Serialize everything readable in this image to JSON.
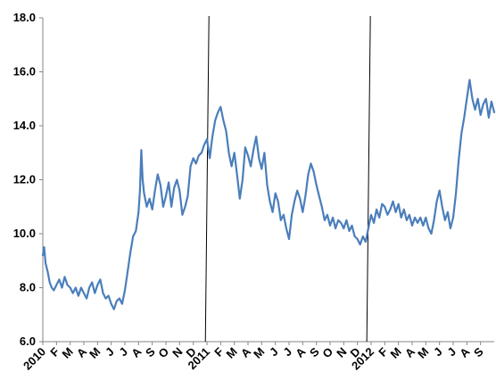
{
  "chart_data": {
    "type": "line",
    "title": "",
    "xlabel": "",
    "ylabel": "",
    "ylim": [
      6.0,
      18.0
    ],
    "yticks": [
      "6.0",
      "8.0",
      "10.0",
      "12.0",
      "14.0",
      "16.0",
      "18.0"
    ],
    "grid": false,
    "legend": "none",
    "x_range": [
      0,
      33
    ],
    "x_ticks": [
      {
        "label": "2010",
        "x": 0
      },
      {
        "label": "F",
        "x": 1
      },
      {
        "label": "M",
        "x": 2
      },
      {
        "label": "A",
        "x": 3
      },
      {
        "label": "M",
        "x": 4
      },
      {
        "label": "J",
        "x": 5
      },
      {
        "label": "J",
        "x": 6
      },
      {
        "label": "A",
        "x": 7
      },
      {
        "label": "S",
        "x": 8
      },
      {
        "label": "O",
        "x": 9
      },
      {
        "label": "N",
        "x": 10
      },
      {
        "label": "D",
        "x": 11
      },
      {
        "label": "2011",
        "x": 12
      },
      {
        "label": "F",
        "x": 13
      },
      {
        "label": "M",
        "x": 14
      },
      {
        "label": "A",
        "x": 15
      },
      {
        "label": "M",
        "x": 16
      },
      {
        "label": "J",
        "x": 17
      },
      {
        "label": "J",
        "x": 18
      },
      {
        "label": "A",
        "x": 19
      },
      {
        "label": "S",
        "x": 20
      },
      {
        "label": "O",
        "x": 21
      },
      {
        "label": "N",
        "x": 22
      },
      {
        "label": "D",
        "x": 23
      },
      {
        "label": "2012",
        "x": 24
      },
      {
        "label": "F",
        "x": 25
      },
      {
        "label": "M",
        "x": 26
      },
      {
        "label": "A",
        "x": 27
      },
      {
        "label": "M",
        "x": 28
      },
      {
        "label": "J",
        "x": 29
      },
      {
        "label": "J",
        "x": 30
      },
      {
        "label": "A",
        "x": 31
      },
      {
        "label": "S",
        "x": 32
      }
    ],
    "vertical_lines": [
      11.95,
      23.75
    ],
    "series": [
      {
        "color": "#4A7EBB",
        "points": [
          [
            0.0,
            9.2
          ],
          [
            0.1,
            9.5
          ],
          [
            0.2,
            8.9
          ],
          [
            0.35,
            8.6
          ],
          [
            0.5,
            8.2
          ],
          [
            0.65,
            8.0
          ],
          [
            0.8,
            7.9
          ],
          [
            1.0,
            8.1
          ],
          [
            1.2,
            8.3
          ],
          [
            1.4,
            8.0
          ],
          [
            1.6,
            8.4
          ],
          [
            1.8,
            8.1
          ],
          [
            2.0,
            8.0
          ],
          [
            2.2,
            7.8
          ],
          [
            2.4,
            8.0
          ],
          [
            2.6,
            7.7
          ],
          [
            2.8,
            8.0
          ],
          [
            3.0,
            7.8
          ],
          [
            3.2,
            7.6
          ],
          [
            3.4,
            8.0
          ],
          [
            3.6,
            8.2
          ],
          [
            3.8,
            7.8
          ],
          [
            4.0,
            8.1
          ],
          [
            4.2,
            8.3
          ],
          [
            4.4,
            7.8
          ],
          [
            4.6,
            7.6
          ],
          [
            4.8,
            7.7
          ],
          [
            5.0,
            7.4
          ],
          [
            5.2,
            7.2
          ],
          [
            5.4,
            7.5
          ],
          [
            5.6,
            7.6
          ],
          [
            5.8,
            7.4
          ],
          [
            6.0,
            7.9
          ],
          [
            6.2,
            8.6
          ],
          [
            6.4,
            9.3
          ],
          [
            6.6,
            9.9
          ],
          [
            6.8,
            10.1
          ],
          [
            7.0,
            10.8
          ],
          [
            7.1,
            11.6
          ],
          [
            7.2,
            13.1
          ],
          [
            7.3,
            12.0
          ],
          [
            7.4,
            11.5
          ],
          [
            7.6,
            11.0
          ],
          [
            7.8,
            11.3
          ],
          [
            8.0,
            10.9
          ],
          [
            8.2,
            11.6
          ],
          [
            8.4,
            12.2
          ],
          [
            8.6,
            11.8
          ],
          [
            8.8,
            11.0
          ],
          [
            9.0,
            11.4
          ],
          [
            9.2,
            11.9
          ],
          [
            9.4,
            11.0
          ],
          [
            9.6,
            11.7
          ],
          [
            9.8,
            12.0
          ],
          [
            10.0,
            11.6
          ],
          [
            10.2,
            10.7
          ],
          [
            10.4,
            11.0
          ],
          [
            10.6,
            11.4
          ],
          [
            10.8,
            12.5
          ],
          [
            11.0,
            12.8
          ],
          [
            11.2,
            12.6
          ],
          [
            11.4,
            12.9
          ],
          [
            11.6,
            13.0
          ],
          [
            11.8,
            13.3
          ],
          [
            12.0,
            13.5
          ],
          [
            12.2,
            12.8
          ],
          [
            12.4,
            13.6
          ],
          [
            12.6,
            14.2
          ],
          [
            12.8,
            14.5
          ],
          [
            13.0,
            14.7
          ],
          [
            13.2,
            14.2
          ],
          [
            13.4,
            13.8
          ],
          [
            13.6,
            13.0
          ],
          [
            13.8,
            12.5
          ],
          [
            14.0,
            13.0
          ],
          [
            14.2,
            12.2
          ],
          [
            14.4,
            11.3
          ],
          [
            14.6,
            12.0
          ],
          [
            14.8,
            13.2
          ],
          [
            15.0,
            12.9
          ],
          [
            15.2,
            12.5
          ],
          [
            15.4,
            13.1
          ],
          [
            15.6,
            13.6
          ],
          [
            15.8,
            12.8
          ],
          [
            16.0,
            12.4
          ],
          [
            16.2,
            13.0
          ],
          [
            16.4,
            11.8
          ],
          [
            16.6,
            11.2
          ],
          [
            16.8,
            10.8
          ],
          [
            17.0,
            11.5
          ],
          [
            17.2,
            11.2
          ],
          [
            17.4,
            10.5
          ],
          [
            17.6,
            10.7
          ],
          [
            17.8,
            10.2
          ],
          [
            18.0,
            9.8
          ],
          [
            18.2,
            10.7
          ],
          [
            18.4,
            11.2
          ],
          [
            18.6,
            11.6
          ],
          [
            18.8,
            11.3
          ],
          [
            19.0,
            10.8
          ],
          [
            19.2,
            11.4
          ],
          [
            19.4,
            12.2
          ],
          [
            19.6,
            12.6
          ],
          [
            19.8,
            12.3
          ],
          [
            20.0,
            11.8
          ],
          [
            20.2,
            11.4
          ],
          [
            20.4,
            11.0
          ],
          [
            20.6,
            10.5
          ],
          [
            20.8,
            10.7
          ],
          [
            21.0,
            10.3
          ],
          [
            21.2,
            10.6
          ],
          [
            21.4,
            10.2
          ],
          [
            21.6,
            10.5
          ],
          [
            21.8,
            10.4
          ],
          [
            22.0,
            10.2
          ],
          [
            22.2,
            10.5
          ],
          [
            22.4,
            10.1
          ],
          [
            22.6,
            10.3
          ],
          [
            22.8,
            9.9
          ],
          [
            23.0,
            9.8
          ],
          [
            23.2,
            9.6
          ],
          [
            23.4,
            9.9
          ],
          [
            23.6,
            9.7
          ],
          [
            23.8,
            10.2
          ],
          [
            24.0,
            10.7
          ],
          [
            24.2,
            10.4
          ],
          [
            24.4,
            10.9
          ],
          [
            24.6,
            10.6
          ],
          [
            24.8,
            11.1
          ],
          [
            25.0,
            11.0
          ],
          [
            25.2,
            10.7
          ],
          [
            25.4,
            10.9
          ],
          [
            25.6,
            11.2
          ],
          [
            25.8,
            10.8
          ],
          [
            26.0,
            11.1
          ],
          [
            26.2,
            10.6
          ],
          [
            26.4,
            10.9
          ],
          [
            26.6,
            10.5
          ],
          [
            26.8,
            10.7
          ],
          [
            27.0,
            10.3
          ],
          [
            27.2,
            10.6
          ],
          [
            27.4,
            10.4
          ],
          [
            27.6,
            10.6
          ],
          [
            27.8,
            10.3
          ],
          [
            28.0,
            10.6
          ],
          [
            28.2,
            10.2
          ],
          [
            28.4,
            10.0
          ],
          [
            28.6,
            10.5
          ],
          [
            28.8,
            11.2
          ],
          [
            29.0,
            11.6
          ],
          [
            29.2,
            11.0
          ],
          [
            29.4,
            10.5
          ],
          [
            29.6,
            10.8
          ],
          [
            29.8,
            10.2
          ],
          [
            30.0,
            10.6
          ],
          [
            30.2,
            11.5
          ],
          [
            30.4,
            12.7
          ],
          [
            30.6,
            13.7
          ],
          [
            30.8,
            14.3
          ],
          [
            31.0,
            15.0
          ],
          [
            31.2,
            15.7
          ],
          [
            31.4,
            15.0
          ],
          [
            31.6,
            14.6
          ],
          [
            31.8,
            15.0
          ],
          [
            32.0,
            14.4
          ],
          [
            32.2,
            14.8
          ],
          [
            32.4,
            15.0
          ],
          [
            32.6,
            14.3
          ],
          [
            32.8,
            14.9
          ],
          [
            33.0,
            14.5
          ]
        ]
      }
    ]
  }
}
